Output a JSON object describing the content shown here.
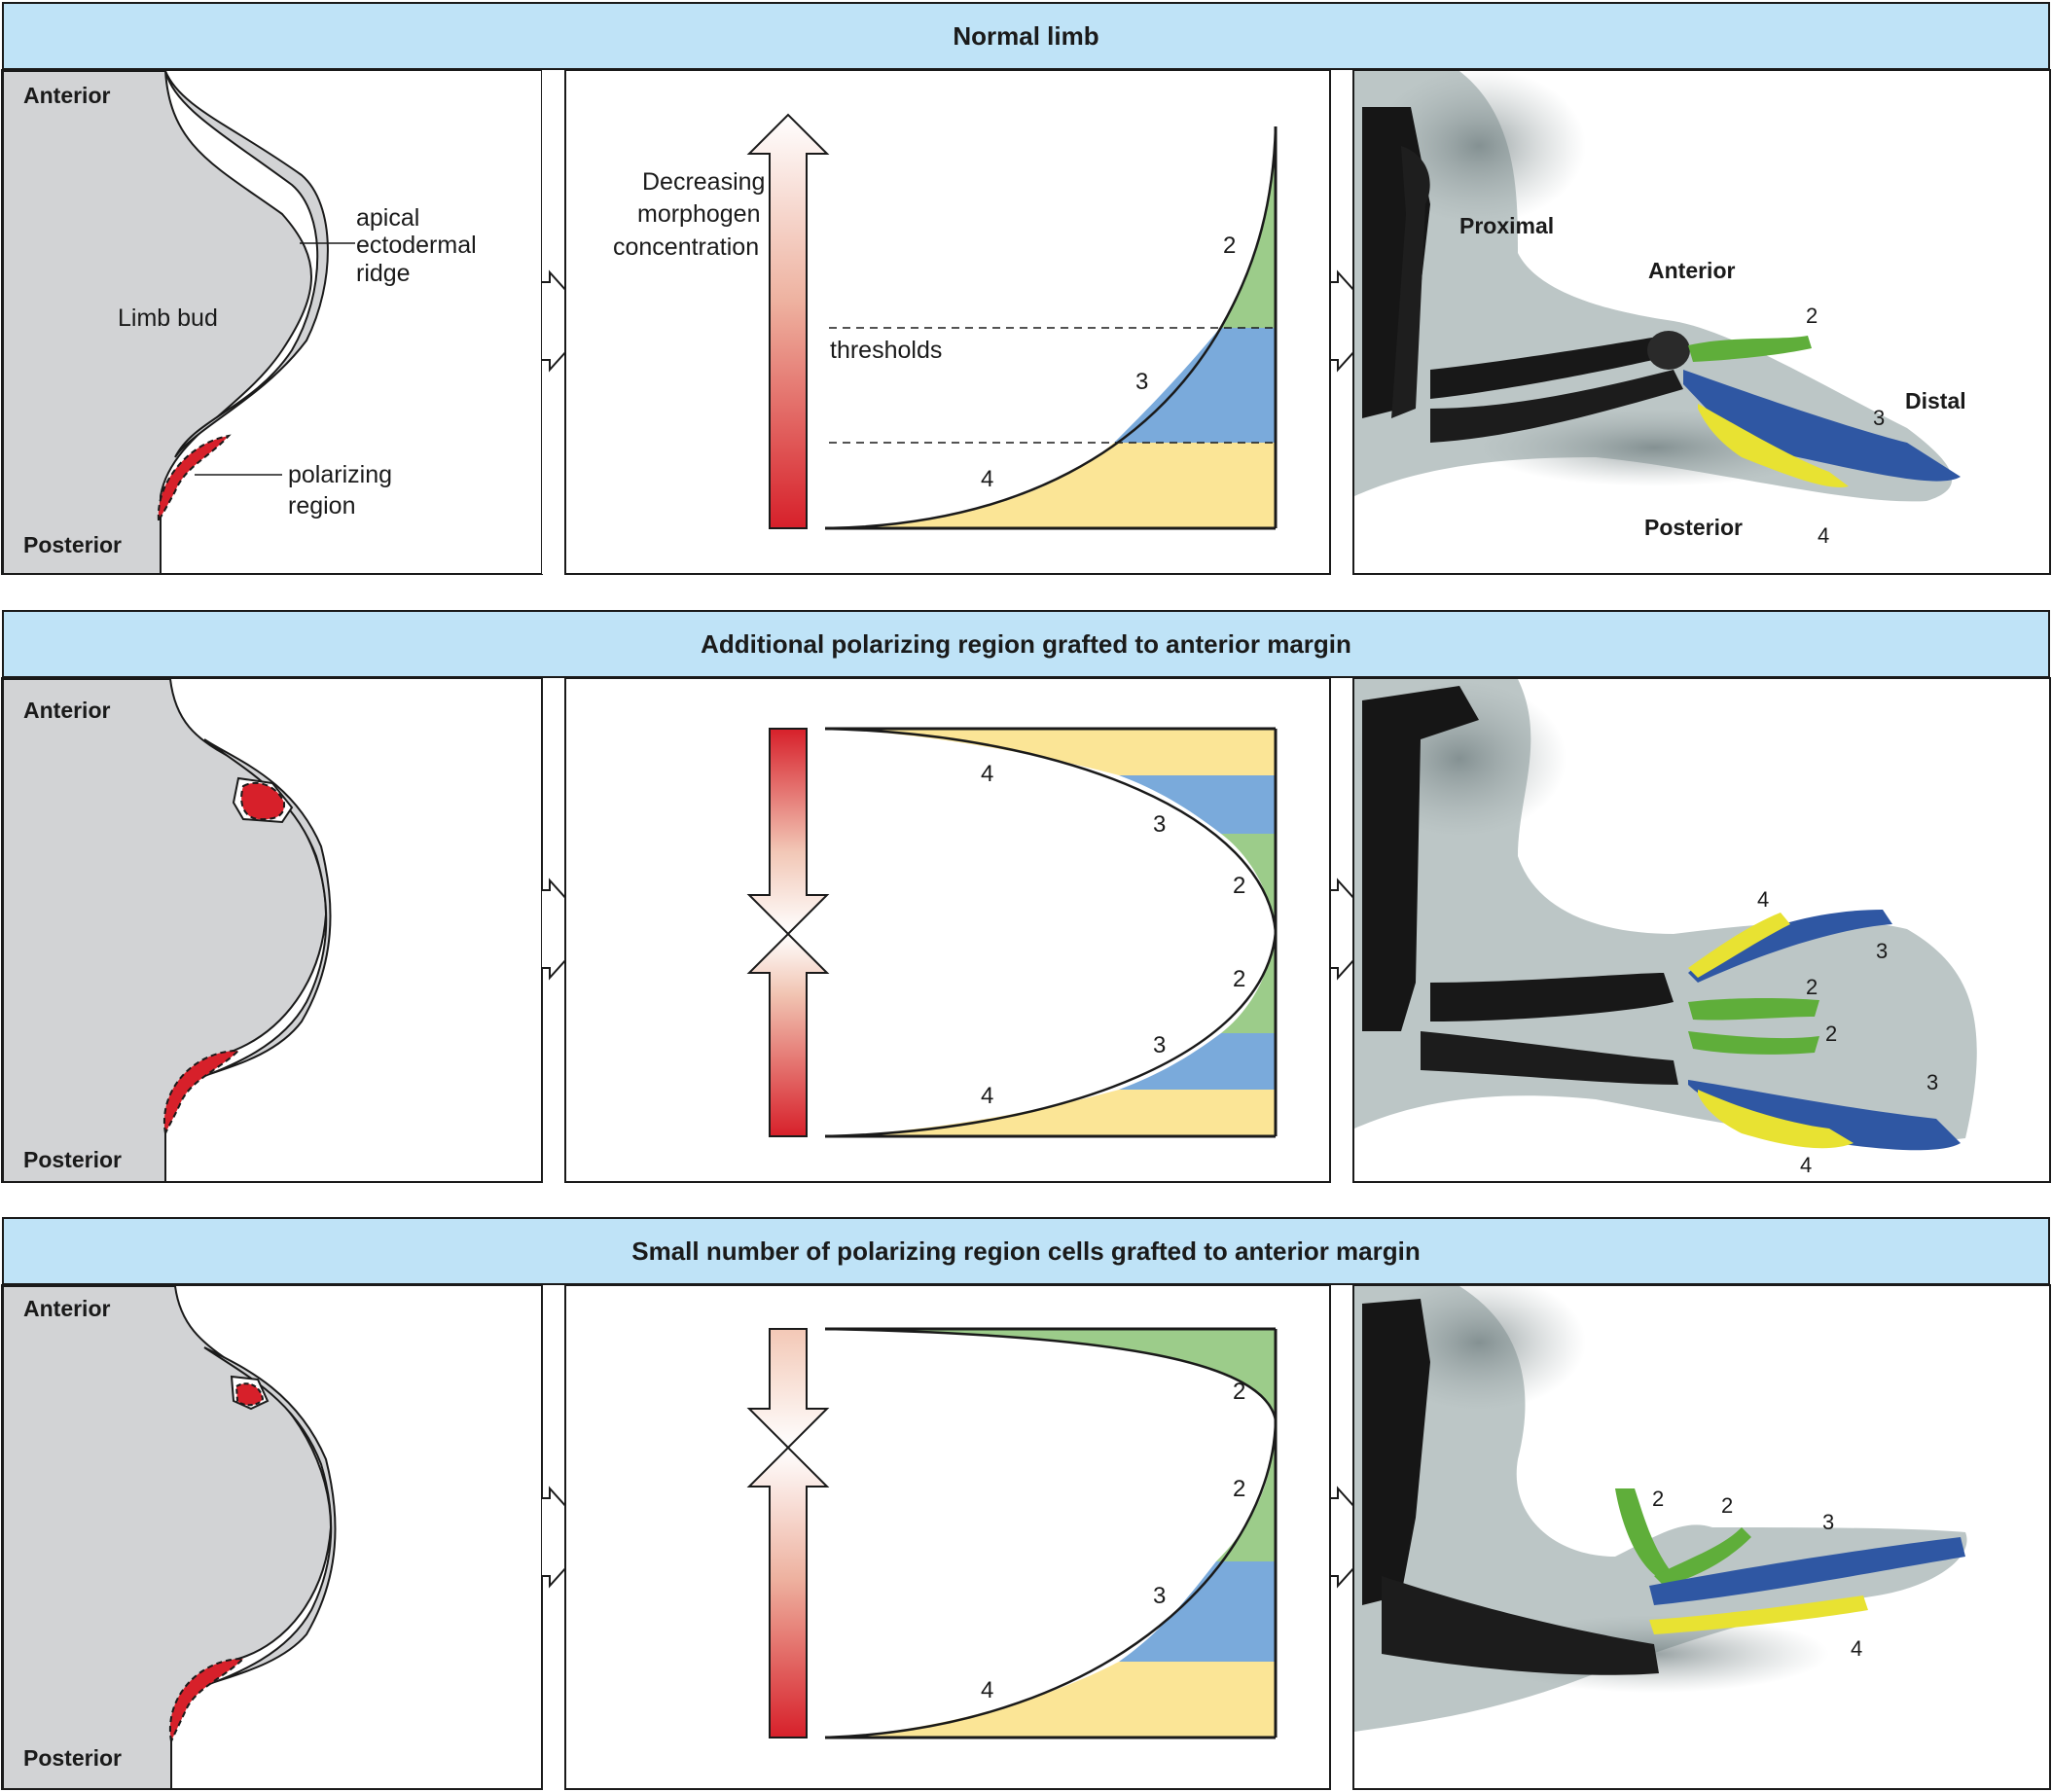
{
  "colors": {
    "header_bg": "#bfe3f7",
    "limb_bud": "#d2d3d5",
    "polarizing_region": "#d7202a",
    "digit_2": "#9ccc8a",
    "digit_3": "#7aaadb",
    "digit_4": "#fbe596",
    "bone_digit2": "#5fae3a",
    "bone_digit3": "#2f57a3",
    "bone_digit4": "#e8e232"
  },
  "panels": [
    {
      "header": "Normal limb",
      "bud_labels": {
        "anterior": "Anterior",
        "posterior": "Posterior",
        "limb_bud": "Limb bud",
        "ridge": [
          "apical",
          "ectodermal",
          "ridge"
        ],
        "polarizing": [
          "polarizing",
          "region"
        ]
      },
      "gradient": {
        "arrow_label": [
          "Decreasing",
          "morphogen",
          "concentration"
        ],
        "thresholds_label": "thresholds",
        "digits": [
          "2",
          "3",
          "4"
        ]
      },
      "photo": {
        "labels": [
          "Proximal",
          "Anterior",
          "Distal",
          "Posterior"
        ],
        "digits": [
          "2",
          "3",
          "4"
        ]
      }
    },
    {
      "header": "Additional polarizing region grafted to anterior margin",
      "bud_labels": {
        "anterior": "Anterior",
        "posterior": "Posterior"
      },
      "gradient": {
        "digits": [
          "4",
          "3",
          "2",
          "2",
          "3",
          "4"
        ]
      },
      "photo": {
        "digits": [
          "4",
          "3",
          "2",
          "2",
          "3",
          "4"
        ]
      }
    },
    {
      "header": "Small number of polarizing region cells grafted to anterior margin",
      "bud_labels": {
        "anterior": "Anterior",
        "posterior": "Posterior"
      },
      "gradient": {
        "digits": [
          "2",
          "2",
          "3",
          "4"
        ]
      },
      "photo": {
        "digits": [
          "2",
          "2",
          "3",
          "4"
        ]
      }
    }
  ]
}
